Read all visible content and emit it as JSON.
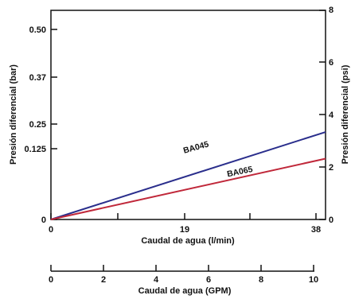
{
  "chart_data": {
    "type": "line",
    "xlabel": "Caudal de agua (l/min)",
    "ylabel_left": "Presión diferencial (bar)",
    "ylabel_right": "Presión diferencial (psi)",
    "xlabel_secondary": "Caudal de agua (GPM)",
    "xlim": [
      0,
      40
    ],
    "ylim_bar": [
      0,
      0.55
    ],
    "ylim_psi": [
      0,
      8
    ],
    "x_ticks": [
      "0",
      "19",
      "38"
    ],
    "y_left_ticks": [
      "0",
      "0.125",
      "0.25",
      "0.37",
      "0.50"
    ],
    "y_right_ticks": [
      "0",
      "2",
      "4",
      "6",
      "8"
    ],
    "gpm_ticks": [
      "0",
      "2",
      "4",
      "6",
      "8",
      "10"
    ],
    "series": [
      {
        "name": "BA045",
        "color": "#2a2e8c",
        "x": [
          0,
          40
        ],
        "y": [
          0,
          0.23
        ]
      },
      {
        "name": "BA065",
        "color": "#c0283a",
        "x": [
          0,
          40
        ],
        "y": [
          0,
          0.16
        ]
      }
    ]
  }
}
